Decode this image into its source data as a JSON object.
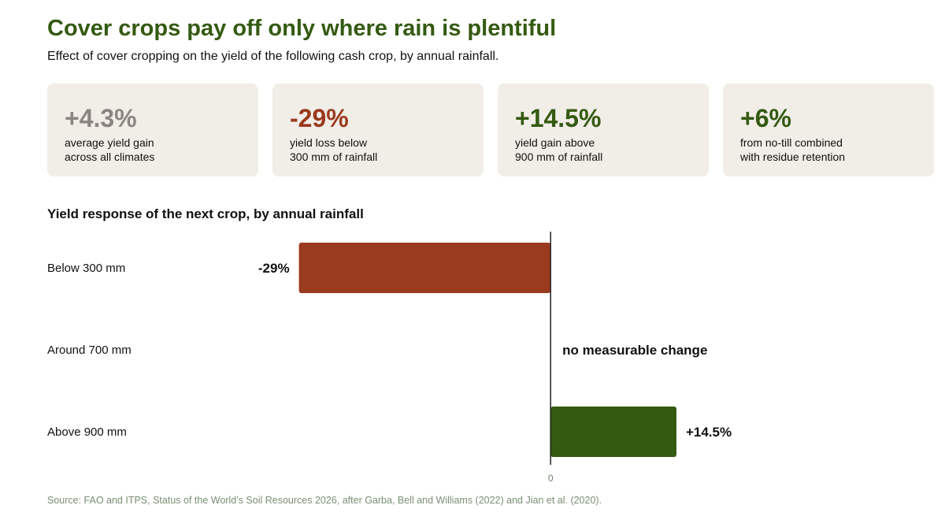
{
  "title": "Cover crops pay off only where rain is plentiful",
  "subtitle": "Effect of cover cropping on the yield of the following cash crop, by annual rainfall.",
  "cards": [
    {
      "value": "+4.3%",
      "label_line1": "average yield gain",
      "label_line2": "across all climates",
      "color": "#8a8580"
    },
    {
      "value": "-29%",
      "label_line1": "yield loss below",
      "label_line2": "300 mm of rainfall",
      "color": "#9a3a1e"
    },
    {
      "value": "+14.5%",
      "label_line1": "yield gain above",
      "label_line2": "900 mm of rainfall",
      "color": "#345a11"
    },
    {
      "value": "+6%",
      "label_line1": "from no-till combined",
      "label_line2": "with residue retention",
      "color": "#345a11"
    }
  ],
  "chart_data": {
    "type": "bar",
    "orientation": "horizontal",
    "title": "Yield response of the next crop, by annual rainfall",
    "categories": [
      "Below 300 mm",
      "Around 700 mm",
      "Above 900 mm"
    ],
    "values": [
      -29,
      0,
      14.5
    ],
    "value_labels": [
      "-29%",
      "no measurable change",
      "+14.5%"
    ],
    "colors": [
      "#9a3a1e",
      "#9a3a1e",
      "#345a11"
    ],
    "zero_tick_label": "0",
    "xlim": [
      -58,
      40
    ],
    "grid": false,
    "legend": false
  },
  "source": "Source: FAO and ITPS, Status of the World’s Soil Resources 2026, after Garba, Bell and Williams (2022) and Jian et al. (2020)."
}
